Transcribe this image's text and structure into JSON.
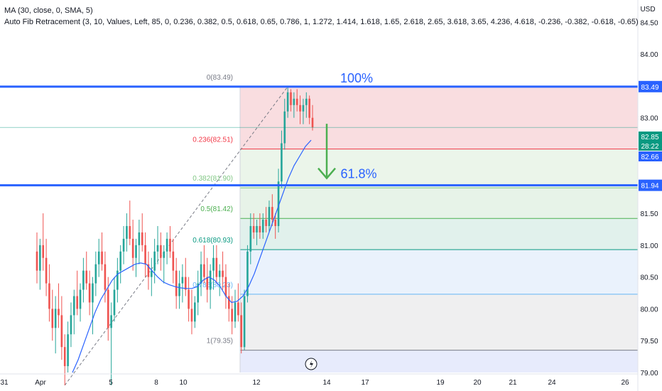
{
  "legend": {
    "ma_label": "MA (30, close, 0, SMA, 5)",
    "fib_label": "Auto Fib Retracement (3, 10, Values, Left, 85, 0, 0.236, 0.382, 0.5, 0.618, 0.65, 0.786, 1, 1.272, 1.414, 1.618, 1.65, 2.618, 2.65, 3.618, 3.65, 4.236, 4.618, -0.236, -0.382, -0.618, -0.65)"
  },
  "colors": {
    "up": "#26a69a",
    "down": "#ef5350",
    "ma": "#2962ff",
    "annotation_blue": "#2962ff",
    "annotation_arrow": "#4caf50",
    "price_badge": "#089981"
  },
  "chart_data": {
    "type": "candlestick",
    "currency_label": "USD",
    "y_range": [
      79.0,
      84.85
    ],
    "y_ticks": [
      "84.50",
      "84.00",
      "83.00",
      "81.50",
      "81.00",
      "80.50",
      "80.00",
      "79.50",
      "79.00"
    ],
    "x_ticks": [
      "31",
      "Apr",
      "5",
      "8",
      "10",
      "12",
      "14",
      "17",
      "19",
      "20",
      "21",
      "24",
      "26"
    ],
    "fib_levels": [
      {
        "ratio_label": "0(83.49)",
        "price": 83.49,
        "line_color": "#787b86",
        "fill": "#f8d7da"
      },
      {
        "ratio_label": "0.236(82.51)",
        "price": 82.51,
        "line_color": "#f23645",
        "fill": "#e8f3e6"
      },
      {
        "ratio_label": "0.382(81.90)",
        "price": 81.9,
        "line_color": "#81c784",
        "fill": "#e3f1e4"
      },
      {
        "ratio_label": "0.5(81.42)",
        "price": 81.42,
        "line_color": "#4caf50",
        "fill": "#dcefe9"
      },
      {
        "ratio_label": "0.618(80.93)",
        "price": 80.93,
        "line_color": "#089981",
        "fill": "#e6f0fb"
      },
      {
        "ratio_label": "0.786(80.23)",
        "price": 80.23,
        "line_color": "#64b5f6",
        "fill": "#ececed"
      },
      {
        "ratio_label": "1(79.35)",
        "price": 79.35,
        "line_color": "#787b86",
        "fill": "#e3e8fb"
      }
    ],
    "horizontal_lines": [
      {
        "price": 83.49,
        "label": "83.49"
      },
      {
        "price": 81.94,
        "label": "81.94"
      }
    ],
    "price_badges": [
      {
        "label": "82.85",
        "price": 82.85,
        "color": "#089981"
      },
      {
        "label": "28:22",
        "price": 82.69,
        "color": "#089981"
      },
      {
        "label": "82.66",
        "price": 82.51,
        "color": "#2962ff"
      }
    ],
    "annotations": {
      "top_text": "100%",
      "mid_text": "61.8%"
    },
    "ohlc": [
      [
        80.9,
        81.2,
        80.4,
        80.6
      ],
      [
        80.6,
        81.1,
        80.3,
        81.0
      ],
      [
        81.0,
        81.5,
        80.6,
        80.8
      ],
      [
        80.8,
        81.1,
        80.2,
        80.4
      ],
      [
        80.4,
        80.7,
        79.8,
        80.0
      ],
      [
        80.0,
        80.3,
        79.5,
        79.7
      ],
      [
        79.7,
        80.2,
        79.3,
        80.0
      ],
      [
        80.0,
        80.4,
        79.7,
        79.9
      ],
      [
        79.9,
        80.2,
        79.2,
        79.4
      ],
      [
        79.4,
        79.6,
        78.8,
        79.1
      ],
      [
        79.1,
        79.8,
        79.0,
        79.6
      ],
      [
        79.6,
        80.1,
        79.4,
        79.9
      ],
      [
        79.9,
        80.3,
        79.6,
        80.2
      ],
      [
        80.2,
        80.6,
        79.9,
        80.0
      ],
      [
        80.0,
        80.4,
        79.8,
        80.3
      ],
      [
        80.3,
        80.8,
        80.1,
        80.6
      ],
      [
        80.6,
        80.9,
        80.3,
        80.4
      ],
      [
        80.4,
        80.6,
        79.9,
        80.1
      ],
      [
        80.1,
        80.5,
        79.6,
        80.4
      ],
      [
        80.4,
        80.9,
        80.2,
        80.7
      ],
      [
        80.7,
        81.1,
        80.5,
        80.9
      ],
      [
        80.9,
        81.2,
        80.6,
        80.7
      ],
      [
        80.7,
        80.9,
        80.1,
        80.3
      ],
      [
        80.3,
        80.5,
        79.5,
        79.7
      ],
      [
        79.7,
        80.1,
        78.8,
        79.9
      ],
      [
        79.9,
        80.5,
        79.8,
        80.3
      ],
      [
        80.3,
        80.8,
        80.1,
        80.6
      ],
      [
        80.6,
        81.0,
        80.4,
        80.9
      ],
      [
        80.9,
        81.3,
        80.7,
        81.1
      ],
      [
        81.1,
        81.5,
        80.9,
        81.3
      ],
      [
        81.3,
        81.7,
        81.0,
        81.1
      ],
      [
        81.1,
        81.4,
        80.6,
        80.8
      ],
      [
        80.8,
        81.1,
        80.5,
        81.0
      ],
      [
        81.0,
        81.4,
        80.7,
        81.2
      ],
      [
        81.2,
        81.5,
        80.9,
        81.0
      ],
      [
        81.0,
        81.2,
        80.5,
        80.7
      ],
      [
        80.7,
        80.9,
        80.3,
        80.5
      ],
      [
        80.5,
        80.8,
        80.2,
        80.6
      ],
      [
        80.6,
        81.1,
        80.4,
        80.9
      ],
      [
        80.9,
        81.3,
        80.7,
        81.0
      ],
      [
        81.0,
        81.2,
        80.6,
        80.8
      ],
      [
        80.8,
        81.0,
        80.4,
        80.9
      ],
      [
        80.9,
        81.2,
        80.7,
        81.1
      ],
      [
        81.1,
        81.3,
        80.8,
        80.9
      ],
      [
        80.9,
        81.1,
        80.4,
        80.6
      ],
      [
        80.6,
        80.8,
        80.0,
        80.2
      ],
      [
        80.2,
        80.6,
        80.0,
        80.4
      ],
      [
        80.4,
        80.7,
        80.1,
        80.5
      ],
      [
        80.5,
        80.8,
        80.2,
        80.3
      ],
      [
        80.3,
        80.5,
        79.8,
        80.0
      ],
      [
        80.0,
        80.3,
        79.6,
        79.8
      ],
      [
        79.8,
        80.2,
        79.7,
        80.1
      ],
      [
        80.1,
        80.6,
        79.9,
        80.4
      ],
      [
        80.4,
        80.9,
        80.2,
        80.7
      ],
      [
        80.7,
        81.0,
        80.4,
        80.5
      ],
      [
        80.5,
        80.8,
        80.1,
        80.3
      ],
      [
        80.3,
        80.7,
        80.0,
        80.6
      ],
      [
        80.6,
        81.0,
        80.3,
        80.8
      ],
      [
        80.8,
        81.0,
        80.4,
        80.5
      ],
      [
        80.5,
        80.7,
        80.2,
        80.6
      ],
      [
        80.6,
        80.9,
        80.3,
        80.5
      ],
      [
        80.5,
        80.7,
        80.0,
        80.2
      ],
      [
        80.2,
        80.4,
        79.8,
        80.0
      ],
      [
        80.0,
        80.2,
        79.6,
        79.8
      ],
      [
        79.8,
        80.3,
        79.7,
        80.1
      ],
      [
        80.1,
        80.4,
        79.8,
        79.9
      ],
      [
        79.9,
        80.1,
        79.3,
        79.4
      ],
      [
        79.4,
        80.3,
        79.35,
        80.2
      ],
      [
        80.2,
        81.0,
        80.1,
        80.9
      ],
      [
        80.9,
        81.5,
        80.7,
        81.3
      ],
      [
        81.3,
        81.5,
        81.1,
        81.2
      ],
      [
        81.2,
        81.4,
        81.0,
        81.3
      ],
      [
        81.3,
        81.5,
        81.1,
        81.2
      ],
      [
        81.2,
        81.5,
        81.1,
        81.4
      ],
      [
        81.4,
        81.6,
        81.2,
        81.3
      ],
      [
        81.3,
        81.7,
        81.2,
        81.6
      ],
      [
        81.6,
        81.8,
        81.3,
        81.4
      ],
      [
        81.4,
        81.5,
        81.1,
        81.3
      ],
      [
        81.3,
        82.2,
        81.2,
        82.0
      ],
      [
        82.0,
        82.8,
        81.9,
        82.6
      ],
      [
        82.6,
        83.3,
        82.5,
        83.1
      ],
      [
        83.1,
        83.49,
        83.0,
        83.4
      ],
      [
        83.4,
        83.45,
        83.1,
        83.2
      ],
      [
        83.2,
        83.4,
        83.0,
        83.3
      ],
      [
        83.3,
        83.45,
        83.1,
        83.2
      ],
      [
        83.2,
        83.35,
        82.9,
        83.1
      ],
      [
        83.1,
        83.3,
        82.9,
        83.2
      ],
      [
        83.2,
        83.4,
        83.0,
        83.3
      ],
      [
        83.3,
        83.35,
        82.9,
        83.0
      ],
      [
        83.0,
        83.2,
        82.8,
        82.85
      ]
    ],
    "ma": [
      79.0,
      79.2,
      79.45,
      79.7,
      79.95,
      80.15,
      80.3,
      80.45,
      80.55,
      80.6,
      80.65,
      80.7,
      80.72,
      80.7,
      80.6,
      80.5,
      80.42,
      80.38,
      80.35,
      80.33,
      80.32,
      80.32,
      80.35,
      80.45,
      80.5,
      80.45,
      80.35,
      80.2,
      80.1,
      80.12,
      80.2,
      80.35,
      80.55,
      80.8,
      81.05,
      81.3,
      81.55,
      81.8,
      82.05,
      82.25,
      82.4,
      82.55,
      82.65
    ]
  }
}
